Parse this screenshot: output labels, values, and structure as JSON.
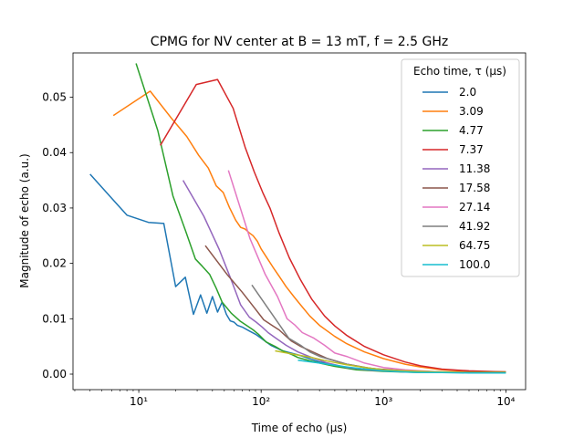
{
  "chart_data": {
    "type": "line",
    "title": "CPMG for NV center at B = 13 mT, f = 2.5 GHz",
    "xlabel": "Time of echo (μs)",
    "ylabel": "Magnitude of echo (a.u.)",
    "xscale": "log",
    "xlim": [
      2.9,
      14500
    ],
    "ylim": [
      -0.0028,
      0.058
    ],
    "x_ticks": [
      10,
      100,
      1000,
      10000
    ],
    "x_tick_labels": [
      "10¹",
      "10²",
      "10³",
      "10⁴"
    ],
    "y_ticks": [
      0.0,
      0.01,
      0.02,
      0.03,
      0.04,
      0.05
    ],
    "y_tick_labels": [
      "0.00",
      "0.01",
      "0.02",
      "0.03",
      "0.04",
      "0.05"
    ],
    "grid": false,
    "legend": {
      "title": "Echo time, τ (μs)",
      "placement": "top-right"
    },
    "series": [
      {
        "name": "2.0",
        "color": "#1f77b4",
        "x": [
          4,
          8,
          12,
          16,
          20,
          24,
          28,
          32,
          36,
          40,
          44,
          48,
          52,
          56,
          60,
          64,
          70,
          80,
          90,
          100,
          120,
          150,
          200,
          300,
          500,
          1000,
          2000,
          5000,
          10000
        ],
        "y": [
          0.0361,
          0.0287,
          0.0274,
          0.0272,
          0.0158,
          0.0175,
          0.0108,
          0.0143,
          0.011,
          0.014,
          0.0112,
          0.013,
          0.0108,
          0.0096,
          0.0094,
          0.0088,
          0.0085,
          0.0078,
          0.0072,
          0.0065,
          0.0052,
          0.0042,
          0.0035,
          0.0022,
          0.0012,
          0.0006,
          0.0004,
          0.0003,
          0.0004
        ]
      },
      {
        "name": "3.09",
        "color": "#ff7f0e",
        "x": [
          6.2,
          12.4,
          18.5,
          24.7,
          30.9,
          37,
          43,
          49,
          55,
          62,
          68,
          74,
          80,
          86,
          93,
          100,
          110,
          125,
          140,
          160,
          185,
          210,
          250,
          300,
          400,
          500,
          700,
          1000,
          1500,
          2000,
          3000,
          5000,
          10000
        ],
        "y": [
          0.0467,
          0.0511,
          0.0462,
          0.0429,
          0.0395,
          0.0372,
          0.034,
          0.0328,
          0.0301,
          0.0278,
          0.0265,
          0.0262,
          0.0255,
          0.025,
          0.024,
          0.0226,
          0.0212,
          0.0193,
          0.0177,
          0.0158,
          0.014,
          0.0125,
          0.0105,
          0.0088,
          0.0068,
          0.0055,
          0.004,
          0.0028,
          0.0018,
          0.0013,
          0.0008,
          0.0005,
          0.0004
        ]
      },
      {
        "name": "4.77",
        "color": "#2ca02c",
        "x": [
          9.5,
          14.3,
          19,
          24,
          29,
          33,
          38,
          43,
          48,
          57,
          67,
          76,
          86,
          95,
          110,
          130,
          150,
          180,
          200,
          250,
          300,
          400,
          600,
          1000,
          2000,
          5000,
          10000
        ],
        "y": [
          0.0561,
          0.044,
          0.0322,
          0.026,
          0.0208,
          0.0195,
          0.018,
          0.0155,
          0.013,
          0.011,
          0.0096,
          0.0088,
          0.008,
          0.0072,
          0.0058,
          0.005,
          0.0042,
          0.0035,
          0.003,
          0.0024,
          0.002,
          0.0014,
          0.0008,
          0.0005,
          0.0003,
          0.0003,
          0.0003
        ]
      },
      {
        "name": "7.37",
        "color": "#d62728",
        "x": [
          15,
          29.5,
          44,
          59,
          74,
          88,
          103,
          118,
          140,
          170,
          210,
          260,
          330,
          400,
          500,
          700,
          1000,
          1500,
          2000,
          3000,
          5000,
          10000
        ],
        "y": [
          0.0413,
          0.0523,
          0.0532,
          0.048,
          0.041,
          0.0365,
          0.0328,
          0.03,
          0.0255,
          0.021,
          0.017,
          0.0135,
          0.0105,
          0.0087,
          0.007,
          0.005,
          0.0035,
          0.0022,
          0.0015,
          0.0009,
          0.0006,
          0.0004
        ]
      },
      {
        "name": "11.38",
        "color": "#9467bd",
        "x": [
          23,
          34,
          45.5,
          57,
          68,
          80,
          91,
          102,
          114,
          130,
          160,
          200,
          260,
          350,
          500,
          800,
          1500,
          3000,
          10000
        ],
        "y": [
          0.035,
          0.0285,
          0.0225,
          0.017,
          0.0125,
          0.0103,
          0.0094,
          0.0085,
          0.0075,
          0.0066,
          0.0052,
          0.004,
          0.003,
          0.002,
          0.0012,
          0.0007,
          0.0004,
          0.0003,
          0.0003
        ]
      },
      {
        "name": "17.58",
        "color": "#8c564b",
        "x": [
          35,
          52.7,
          70,
          88,
          105,
          123,
          140,
          176,
          211,
          264,
          350,
          500,
          800,
          1500,
          3000,
          10000
        ],
        "y": [
          0.0232,
          0.018,
          0.0148,
          0.012,
          0.0098,
          0.0088,
          0.008,
          0.006,
          0.005,
          0.004,
          0.0028,
          0.0018,
          0.001,
          0.0006,
          0.0004,
          0.0004
        ]
      },
      {
        "name": "27.14",
        "color": "#e377c2",
        "x": [
          54,
          81,
          108,
          136,
          163,
          190,
          217,
          270,
          330,
          400,
          500,
          700,
          1000,
          1500,
          2000,
          3000,
          5000,
          10000
        ],
        "y": [
          0.0368,
          0.0245,
          0.018,
          0.014,
          0.01,
          0.0088,
          0.0075,
          0.0065,
          0.0052,
          0.0038,
          0.0032,
          0.002,
          0.0012,
          0.0008,
          0.0006,
          0.0004,
          0.0003,
          0.0003
        ]
      },
      {
        "name": "41.92",
        "color": "#7f7f7f",
        "x": [
          84,
          126,
          168,
          210,
          250,
          300,
          400,
          500,
          700,
          1000,
          1500,
          2000,
          3000,
          5000,
          10000
        ],
        "y": [
          0.0161,
          0.0105,
          0.0065,
          0.0052,
          0.004,
          0.0032,
          0.0024,
          0.0018,
          0.0012,
          0.0008,
          0.0005,
          0.0004,
          0.0003,
          0.0003,
          0.0003
        ]
      },
      {
        "name": "64.75",
        "color": "#bcbd22",
        "x": [
          130,
          194,
          260,
          325,
          400,
          500,
          700,
          1000,
          1500,
          2000,
          3000,
          5000,
          10000
        ],
        "y": [
          0.0042,
          0.0035,
          0.003,
          0.0025,
          0.0021,
          0.0017,
          0.0012,
          0.0008,
          0.0006,
          0.0005,
          0.0004,
          0.0003,
          0.0003
        ]
      },
      {
        "name": "100.0",
        "color": "#17becf",
        "x": [
          200,
          300,
          400,
          500,
          700,
          1000,
          1500,
          2000,
          3000,
          5000,
          10000
        ],
        "y": [
          0.0025,
          0.002,
          0.0016,
          0.0013,
          0.0009,
          0.0006,
          0.0004,
          0.0003,
          0.0003,
          0.0002,
          0.0002
        ]
      }
    ]
  }
}
